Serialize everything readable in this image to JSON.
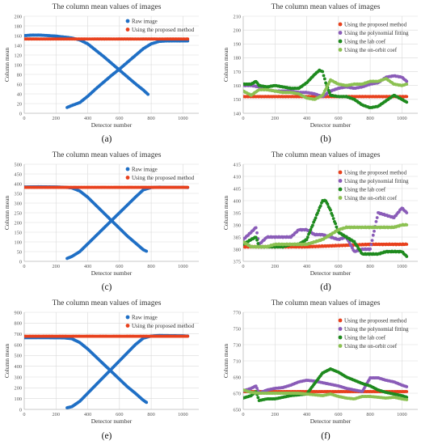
{
  "figure": {
    "panels": [
      {
        "letter": "(a)",
        "title": "The column mean values of images",
        "xlabel": "Detector number",
        "ylabel": "Column mean",
        "legend": [
          "Raw image",
          "Using the proposed method"
        ]
      },
      {
        "letter": "(b)",
        "title": "The column mean values of images",
        "xlabel": "Detector number",
        "ylabel": "Column mean",
        "legend": [
          "Using the proposed method",
          "Using the polynomial fitting",
          "Using the lab coef",
          "Using the on-orbit coef"
        ]
      },
      {
        "letter": "(c)",
        "title": "The column mean values of images",
        "xlabel": "Detector number",
        "ylabel": "Column mean",
        "legend": [
          "Raw image",
          "Using the proposed method"
        ]
      },
      {
        "letter": "(d)",
        "title": "The column mean values of images",
        "xlabel": "Detector number",
        "ylabel": "Column mean",
        "legend": [
          "Using the proposed method",
          "Using the polynomial fitting",
          "Using the lab coef",
          "Using the on-orbit coef"
        ]
      },
      {
        "letter": "(e)",
        "title": "The column mean values of images",
        "xlabel": "Detector number",
        "ylabel": "Column mean",
        "legend": [
          "Raw image",
          "Using the proposed method"
        ]
      },
      {
        "letter": "(f)",
        "title": "The column mean values of images",
        "xlabel": "Detector number",
        "ylabel": "Column mean",
        "legend": [
          "Using the proposed method",
          "Using the polynomial fitting",
          "Using the lab coef",
          "Using the on-orbit coef"
        ]
      }
    ]
  },
  "colors": {
    "raw": "#1f6fc5",
    "proposed": "#e8401c",
    "poly": "#8a5cb8",
    "lab": "#1e8a1e",
    "orbit": "#8cc152",
    "grid": "#d9d9d9",
    "axis": "#bfbfbf",
    "text": "#595959"
  },
  "chart_data": [
    {
      "type": "scatter",
      "xlim": [
        0,
        1100
      ],
      "ylim": [
        0,
        200
      ],
      "xticks": [
        0,
        200,
        400,
        600,
        800,
        1000
      ],
      "yticks": [
        0,
        20,
        40,
        60,
        80,
        100,
        120,
        140,
        160,
        180,
        200
      ],
      "grid": true,
      "legend_position": "top-right",
      "series": [
        {
          "name": "Raw image",
          "color": "#1f6fc5",
          "x": [
            0,
            50,
            100,
            150,
            200,
            250,
            300,
            350,
            400,
            450,
            500,
            550,
            600,
            650,
            700,
            750,
            780,
            270,
            300,
            350,
            400,
            450,
            500,
            550,
            600,
            650,
            700,
            750,
            800,
            850,
            900,
            950,
            1000,
            1030
          ],
          "y": [
            160,
            161,
            161,
            160,
            159,
            157,
            155,
            151,
            143,
            130,
            117,
            103,
            89,
            75,
            61,
            48,
            39,
            12,
            16,
            22,
            35,
            50,
            64,
            78,
            91,
            105,
            119,
            133,
            143,
            148,
            149,
            149,
            149,
            149
          ]
        },
        {
          "name": "Using the proposed method",
          "color": "#e8401c",
          "x": [
            0,
            100,
            200,
            300,
            400,
            500,
            600,
            700,
            800,
            900,
            1000,
            1030
          ],
          "y": [
            153,
            153,
            153,
            153,
            153,
            153,
            153,
            153,
            153,
            153,
            153,
            153
          ]
        }
      ]
    },
    {
      "type": "scatter",
      "xlim": [
        0,
        1100
      ],
      "ylim": [
        140,
        210
      ],
      "xticks": [
        0,
        200,
        400,
        600,
        800,
        1000
      ],
      "yticks": [
        140,
        150,
        160,
        170,
        180,
        190,
        200,
        210
      ],
      "grid": true,
      "legend_position": "top-right",
      "series": [
        {
          "name": "Using the proposed method",
          "color": "#e8401c",
          "x": [
            0,
            200,
            400,
            600,
            800,
            1000,
            1030
          ],
          "y": [
            152,
            152,
            152,
            152,
            152,
            152,
            152
          ]
        },
        {
          "name": "Using the polynomial fitting",
          "color": "#8a5cb8",
          "x": [
            0,
            50,
            100,
            150,
            200,
            250,
            300,
            350,
            400,
            450,
            500,
            550,
            600,
            650,
            700,
            750,
            800,
            850,
            900,
            950,
            1000,
            1030
          ],
          "y": [
            160,
            160,
            159,
            157,
            156,
            156,
            156,
            155,
            155,
            154,
            152,
            156,
            158,
            159,
            158,
            159,
            161,
            162,
            166,
            167,
            166,
            163
          ]
        },
        {
          "name": "Using the lab coef",
          "color": "#1e8a1e",
          "x": [
            0,
            50,
            80,
            100,
            150,
            200,
            250,
            300,
            350,
            400,
            450,
            480,
            500,
            520,
            550,
            600,
            650,
            700,
            750,
            800,
            850,
            900,
            950,
            1000,
            1030
          ],
          "y": [
            161,
            161,
            163,
            160,
            159,
            160,
            159,
            158,
            158,
            162,
            168,
            171,
            170,
            162,
            153,
            152,
            152,
            150,
            146,
            144,
            145,
            149,
            153,
            150,
            148
          ]
        },
        {
          "name": "Using the on-orbit coef",
          "color": "#8cc152",
          "x": [
            0,
            50,
            100,
            150,
            200,
            250,
            300,
            350,
            400,
            450,
            500,
            550,
            600,
            650,
            700,
            750,
            800,
            850,
            900,
            950,
            1000,
            1030
          ],
          "y": [
            156,
            153,
            157,
            157,
            156,
            155,
            155,
            154,
            151,
            150,
            153,
            164,
            161,
            160,
            161,
            161,
            163,
            163,
            165,
            161,
            160,
            161
          ]
        }
      ]
    },
    {
      "type": "scatter",
      "xlim": [
        0,
        1100
      ],
      "ylim": [
        0,
        500
      ],
      "xticks": [
        0,
        200,
        400,
        600,
        800,
        1000
      ],
      "yticks": [
        0,
        50,
        100,
        150,
        200,
        250,
        300,
        350,
        400,
        450,
        500
      ],
      "grid": true,
      "legend_position": "top-right",
      "series": [
        {
          "name": "Raw image",
          "color": "#1f6fc5",
          "x": [
            0,
            100,
            200,
            250,
            300,
            350,
            400,
            450,
            500,
            550,
            600,
            650,
            700,
            750,
            770,
            270,
            300,
            350,
            400,
            450,
            500,
            550,
            600,
            650,
            700,
            750,
            800,
            850,
            900,
            950,
            1000,
            1030
          ],
          "y": [
            383,
            384,
            383,
            382,
            378,
            362,
            330,
            290,
            250,
            210,
            170,
            130,
            95,
            60,
            52,
            15,
            25,
            50,
            90,
            130,
            170,
            210,
            250,
            290,
            330,
            368,
            380,
            382,
            381,
            381,
            381,
            380
          ]
        },
        {
          "name": "Using the proposed method",
          "color": "#e8401c",
          "x": [
            0,
            200,
            400,
            600,
            800,
            1000,
            1030
          ],
          "y": [
            381,
            381,
            381,
            381,
            381,
            381,
            381
          ]
        }
      ]
    },
    {
      "type": "scatter",
      "xlim": [
        0,
        1100
      ],
      "ylim": [
        375,
        415
      ],
      "xticks": [
        0,
        200,
        400,
        600,
        800,
        1000
      ],
      "yticks": [
        375,
        380,
        385,
        390,
        395,
        400,
        405,
        410,
        415
      ],
      "grid": true,
      "legend_position": "top-right",
      "series": [
        {
          "name": "Using the proposed method",
          "color": "#e8401c",
          "x": [
            0,
            200,
            400,
            600,
            800,
            1000,
            1030
          ],
          "y": [
            381,
            381,
            381,
            381.5,
            382,
            382,
            382
          ]
        },
        {
          "name": "Using the polynomial fitting",
          "color": "#8a5cb8",
          "x": [
            0,
            50,
            80,
            100,
            150,
            200,
            250,
            300,
            350,
            400,
            450,
            500,
            550,
            600,
            650,
            700,
            750,
            800,
            850,
            900,
            950,
            1000,
            1030
          ],
          "y": [
            384,
            387,
            389,
            382,
            385,
            385,
            385,
            385,
            388,
            388,
            386,
            386,
            385,
            384,
            385,
            379,
            380,
            380,
            395,
            394,
            393,
            397,
            395
          ]
        },
        {
          "name": "Using the lab coef",
          "color": "#1e8a1e",
          "x": [
            0,
            50,
            80,
            100,
            150,
            200,
            250,
            300,
            350,
            400,
            450,
            500,
            520,
            550,
            600,
            650,
            700,
            750,
            800,
            850,
            900,
            950,
            1000,
            1030
          ],
          "y": [
            382,
            384,
            385,
            381,
            381,
            381,
            381,
            382,
            382,
            384,
            392,
            400,
            400,
            396,
            387,
            385,
            383,
            378,
            378,
            378,
            379,
            379,
            379,
            377
          ]
        },
        {
          "name": "Using the on-orbit coef",
          "color": "#8cc152",
          "x": [
            0,
            50,
            100,
            150,
            200,
            250,
            300,
            350,
            400,
            450,
            500,
            550,
            600,
            650,
            700,
            750,
            800,
            850,
            900,
            950,
            1000,
            1030
          ],
          "y": [
            383,
            381,
            381,
            381,
            382,
            382,
            382,
            382,
            382,
            383,
            384,
            386,
            388,
            389,
            389,
            389,
            389,
            389,
            389,
            389,
            390,
            390
          ]
        }
      ]
    },
    {
      "type": "scatter",
      "xlim": [
        0,
        1100
      ],
      "ylim": [
        0,
        900
      ],
      "xticks": [
        0,
        200,
        400,
        600,
        800,
        1000
      ],
      "yticks": [
        0,
        100,
        200,
        300,
        400,
        500,
        600,
        700,
        800,
        900
      ],
      "grid": true,
      "legend_position": "top-right",
      "series": [
        {
          "name": "Raw image",
          "color": "#1f6fc5",
          "x": [
            0,
            100,
            200,
            250,
            300,
            350,
            400,
            450,
            500,
            550,
            600,
            650,
            700,
            750,
            770,
            270,
            300,
            350,
            400,
            450,
            500,
            550,
            600,
            650,
            700,
            750,
            800,
            850,
            900,
            950,
            1000,
            1030
          ],
          "y": [
            665,
            665,
            664,
            663,
            655,
            620,
            560,
            490,
            420,
            350,
            280,
            210,
            150,
            85,
            65,
            15,
            25,
            75,
            150,
            225,
            300,
            375,
            450,
            525,
            600,
            660,
            680,
            685,
            684,
            683,
            682,
            680
          ]
        },
        {
          "name": "Using the proposed method",
          "color": "#e8401c",
          "x": [
            0,
            200,
            400,
            600,
            800,
            1000,
            1030
          ],
          "y": [
            678,
            678,
            678,
            678,
            678,
            678,
            678
          ]
        }
      ]
    },
    {
      "type": "scatter",
      "xlim": [
        0,
        1100
      ],
      "ylim": [
        650,
        770
      ],
      "xticks": [
        0,
        200,
        400,
        600,
        800,
        1000
      ],
      "yticks": [
        650,
        670,
        690,
        710,
        730,
        750,
        770
      ],
      "grid": true,
      "legend_position": "top-right",
      "series": [
        {
          "name": "Using the proposed method",
          "color": "#e8401c",
          "x": [
            0,
            200,
            400,
            600,
            800,
            1000,
            1030
          ],
          "y": [
            672,
            672,
            672,
            672,
            672,
            672,
            672
          ]
        },
        {
          "name": "Using the polynomial fitting",
          "color": "#8a5cb8",
          "x": [
            0,
            50,
            80,
            100,
            150,
            200,
            250,
            300,
            350,
            400,
            450,
            500,
            550,
            600,
            650,
            700,
            750,
            800,
            850,
            900,
            950,
            1000,
            1030
          ],
          "y": [
            673,
            676,
            679,
            670,
            674,
            676,
            677,
            680,
            684,
            686,
            685,
            683,
            681,
            679,
            676,
            674,
            672,
            689,
            689,
            686,
            684,
            680,
            678
          ]
        },
        {
          "name": "Using the lab coef",
          "color": "#1e8a1e",
          "x": [
            0,
            50,
            80,
            100,
            150,
            200,
            250,
            300,
            350,
            400,
            450,
            500,
            550,
            600,
            650,
            700,
            750,
            800,
            850,
            900,
            950,
            1000,
            1030
          ],
          "y": [
            664,
            667,
            672,
            661,
            663,
            663,
            665,
            667,
            668,
            669,
            682,
            695,
            700,
            696,
            690,
            686,
            682,
            679,
            674,
            671,
            669,
            667,
            665
          ]
        },
        {
          "name": "Using the on-orbit coef",
          "color": "#8cc152",
          "x": [
            0,
            50,
            100,
            150,
            200,
            250,
            300,
            350,
            400,
            450,
            500,
            550,
            600,
            650,
            700,
            750,
            800,
            850,
            900,
            950,
            1000,
            1030
          ],
          "y": [
            674,
            671,
            670,
            670,
            670,
            670,
            670,
            670,
            669,
            668,
            667,
            669,
            666,
            664,
            663,
            666,
            666,
            665,
            664,
            665,
            663,
            662
          ]
        }
      ]
    }
  ]
}
